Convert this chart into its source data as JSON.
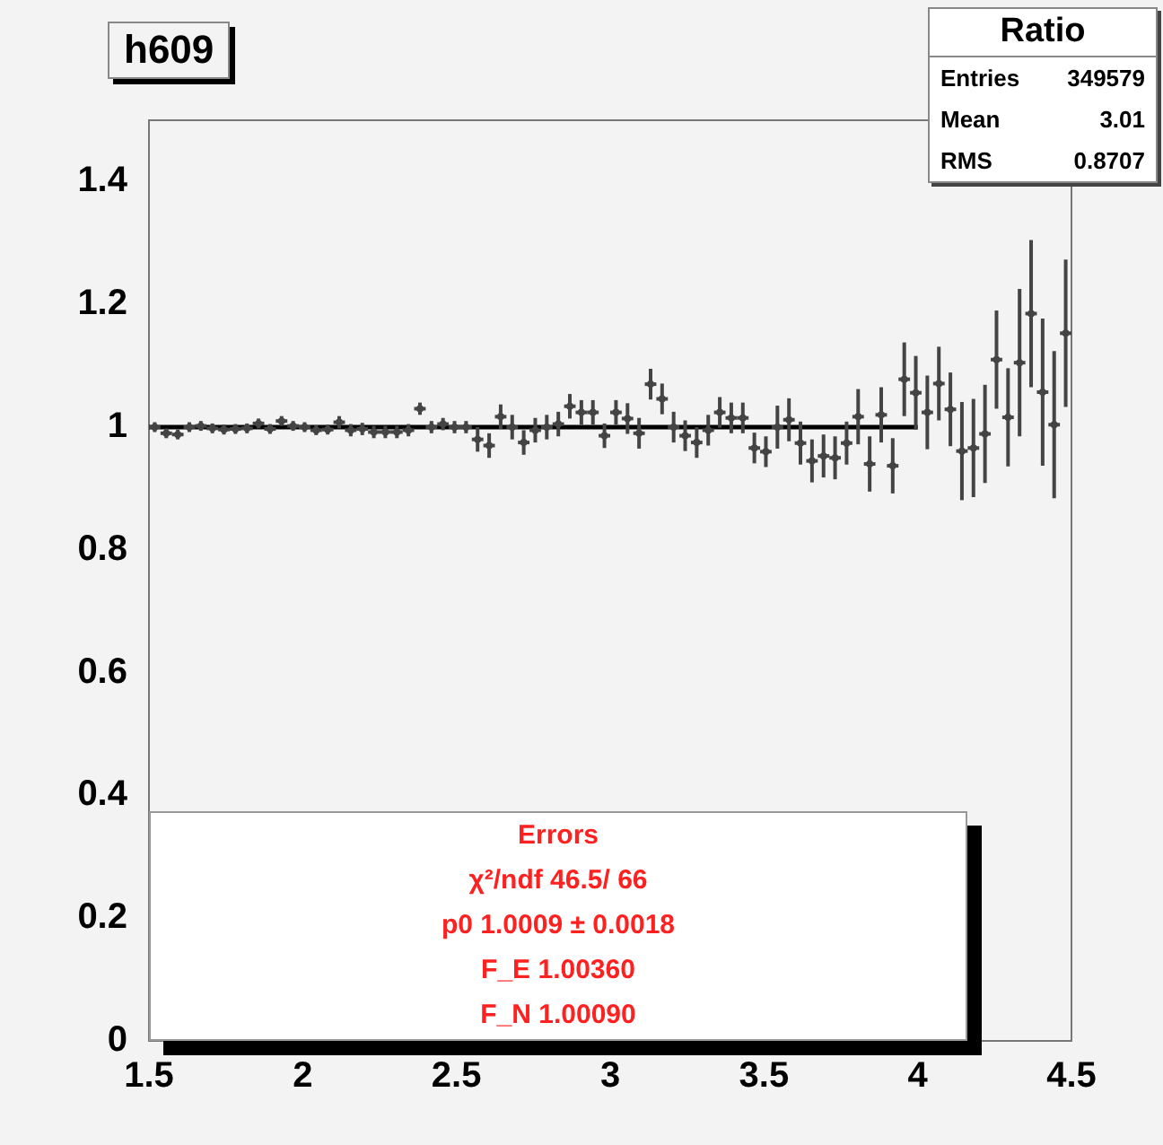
{
  "chart_data": {
    "type": "scatter",
    "title": "h609",
    "x": [
      1.51875,
      1.55625,
      1.59375,
      1.63125,
      1.66875,
      1.70625,
      1.74375,
      1.78125,
      1.81875,
      1.85625,
      1.89375,
      1.93125,
      1.96875,
      2.00625,
      2.04375,
      2.08125,
      2.11875,
      2.15625,
      2.19375,
      2.23125,
      2.26875,
      2.30625,
      2.34375,
      2.38125,
      2.41875,
      2.45625,
      2.49375,
      2.53125,
      2.56875,
      2.60625,
      2.64375,
      2.68125,
      2.71875,
      2.75625,
      2.79375,
      2.83125,
      2.86875,
      2.90625,
      2.94375,
      2.98125,
      3.01875,
      3.05625,
      3.09375,
      3.13125,
      3.16875,
      3.20625,
      3.24375,
      3.28125,
      3.31875,
      3.35625,
      3.39375,
      3.43125,
      3.46875,
      3.50625,
      3.54375,
      3.58125,
      3.61875,
      3.65625,
      3.69375,
      3.73125,
      3.76875,
      3.80625,
      3.84375,
      3.88125,
      3.91875,
      3.95625,
      3.99375,
      4.03125,
      4.06875,
      4.10625,
      4.14375,
      4.18125,
      4.21875,
      4.25625,
      4.29375,
      4.33125,
      4.36875,
      4.40625,
      4.44375,
      4.48125
    ],
    "series": [
      {
        "type": "scatter",
        "color": "#444444",
        "values": [
          1.0,
          0.99,
          0.988,
          1.0,
          1.002,
          0.998,
          0.996,
          0.997,
          0.998,
          1.006,
          0.997,
          1.01,
          1.002,
          1.0,
          0.995,
          0.996,
          1.008,
          0.995,
          0.997,
          0.992,
          0.992,
          0.992,
          0.995,
          1.03,
          1.0,
          1.005,
          1.0,
          1.0,
          0.98,
          0.97,
          1.017,
          1.0,
          0.975,
          0.995,
          1.0,
          1.005,
          1.034,
          1.024,
          1.024,
          0.986,
          1.024,
          1.014,
          0.99,
          1.07,
          1.046,
          1.0,
          0.986,
          0.975,
          0.995,
          1.024,
          1.015,
          1.015,
          0.966,
          0.96,
          1.0,
          1.012,
          0.974,
          0.945,
          0.953,
          0.95,
          0.974,
          1.017,
          0.94,
          1.02,
          0.937,
          1.078,
          1.056,
          1.024,
          1.071,
          1.029,
          0.961,
          0.966,
          0.989,
          1.11,
          1.016,
          1.105,
          1.185,
          1.057,
          1.004,
          1.153
        ],
        "errors": [
          0.008,
          0.008,
          0.008,
          0.008,
          0.008,
          0.008,
          0.008,
          0.008,
          0.008,
          0.008,
          0.008,
          0.008,
          0.008,
          0.008,
          0.008,
          0.008,
          0.01,
          0.01,
          0.01,
          0.01,
          0.01,
          0.01,
          0.01,
          0.01,
          0.01,
          0.01,
          0.01,
          0.01,
          0.02,
          0.02,
          0.02,
          0.02,
          0.02,
          0.02,
          0.02,
          0.02,
          0.02,
          0.02,
          0.02,
          0.02,
          0.02,
          0.025,
          0.025,
          0.025,
          0.025,
          0.025,
          0.025,
          0.025,
          0.025,
          0.025,
          0.025,
          0.025,
          0.025,
          0.025,
          0.035,
          0.035,
          0.035,
          0.035,
          0.035,
          0.035,
          0.035,
          0.045,
          0.045,
          0.045,
          0.045,
          0.06,
          0.06,
          0.06,
          0.06,
          0.06,
          0.08,
          0.08,
          0.08,
          0.08,
          0.08,
          0.12,
          0.12,
          0.12,
          0.12,
          0.12
        ],
        "xerrors": [
          0.01875,
          0.01875,
          0.01875,
          0.01875,
          0.01875,
          0.01875,
          0.01875,
          0.01875,
          0.01875,
          0.01875,
          0.01875,
          0.01875,
          0.01875,
          0.01875,
          0.01875,
          0.01875,
          0.01875,
          0.01875,
          0.01875,
          0.01875,
          0.01875,
          0.01875,
          0.01875,
          0.01875,
          0.01875,
          0.01875,
          0.01875,
          0.01875,
          0.01875,
          0.01875,
          0.01875,
          0.01875,
          0.01875,
          0.01875,
          0.01875,
          0.01875,
          0.01875,
          0.01875,
          0.01875,
          0.01875,
          0.01875,
          0.01875,
          0.01875,
          0.01875,
          0.01875,
          0.01875,
          0.01875,
          0.01875,
          0.01875,
          0.01875,
          0.01875,
          0.01875,
          0.01875,
          0.01875,
          0.01875,
          0.01875,
          0.01875,
          0.01875,
          0.01875,
          0.01875,
          0.01875,
          0.01875,
          0.01875,
          0.01875,
          0.01875,
          0.01875,
          0.01875,
          0.01875,
          0.01875,
          0.01875,
          0.01875,
          0.01875,
          0.01875,
          0.01875,
          0.01875,
          0.01875,
          0.01875,
          0.01875,
          0.01875,
          0.01875
        ]
      },
      {
        "type": "line",
        "color": "#000000",
        "marker": "none",
        "line_style": "solid",
        "x": [
          1.5,
          4.0
        ],
        "values": [
          1.0,
          1.0
        ]
      }
    ],
    "xlim": [
      1.5,
      4.5
    ],
    "xticks": [
      1.5,
      2,
      2.5,
      3,
      3.5,
      4,
      4.5
    ],
    "ylim": [
      0,
      1.5
    ],
    "yticks": [
      0,
      0.2,
      0.4,
      0.6,
      0.8,
      1,
      1.2,
      1.4
    ],
    "grid": false,
    "legend": false,
    "annotations": [
      "Ratio",
      "Entries 349579",
      "Mean 3.01",
      "RMS 0.8707",
      "Errors",
      "χ²/ndf 46.5/ 66",
      "p0 1.0009 ± 0.0018",
      "F_E 1.00360",
      "F_N 1.00090"
    ]
  }
}
